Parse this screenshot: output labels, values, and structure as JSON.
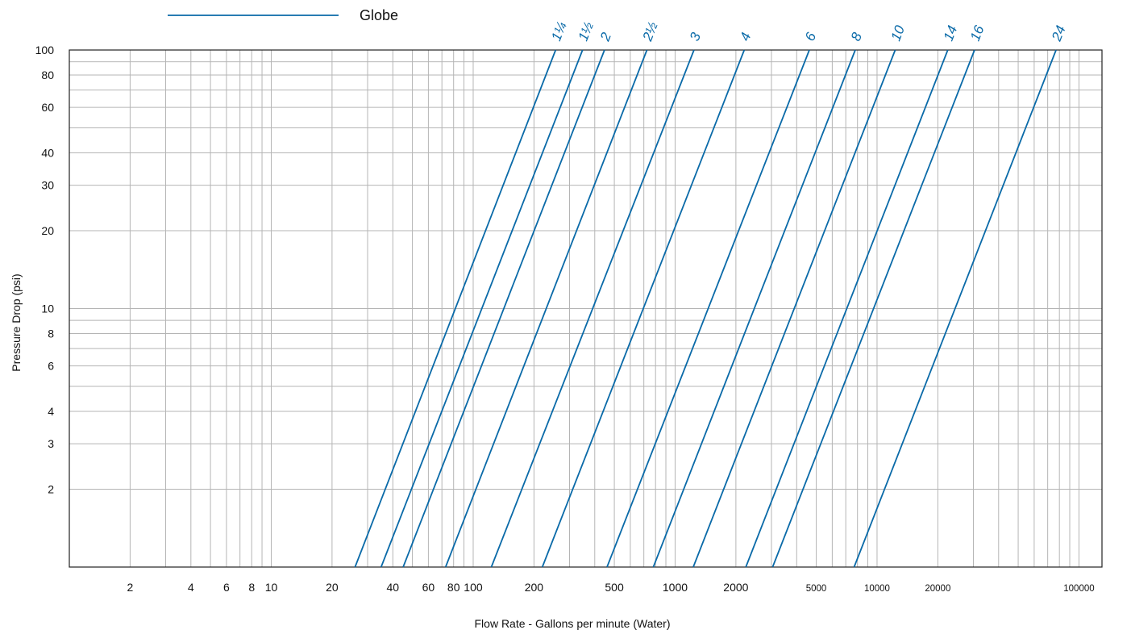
{
  "chart_data": {
    "type": "line",
    "title": "",
    "legend": {
      "label": "Globe",
      "placement": "top-left"
    },
    "xlabel": "Flow Rate - Gallons per minute (Water)",
    "ylabel": "Pressure Drop (psi)",
    "x_scale": "log",
    "y_scale": "log",
    "xlim": [
      1,
      130000
    ],
    "ylim": [
      1,
      100
    ],
    "grid": true,
    "series_color": "#0a6aa8",
    "x_ticks": [
      {
        "value": 2,
        "label": "2"
      },
      {
        "value": 4,
        "label": "4"
      },
      {
        "value": 6,
        "label": "6"
      },
      {
        "value": 8,
        "label": "8"
      },
      {
        "value": 10,
        "label": "10"
      },
      {
        "value": 20,
        "label": "20"
      },
      {
        "value": 40,
        "label": "40"
      },
      {
        "value": 60,
        "label": "60"
      },
      {
        "value": 80,
        "label": "80"
      },
      {
        "value": 100,
        "label": "100"
      },
      {
        "value": 200,
        "label": "200"
      },
      {
        "value": 500,
        "label": "500"
      },
      {
        "value": 1000,
        "label": "1000"
      },
      {
        "value": 2000,
        "label": "2000"
      },
      {
        "value": 5000,
        "label": "5000",
        "small": true
      },
      {
        "value": 10000,
        "label": "10000",
        "small": true
      },
      {
        "value": 20000,
        "label": "20000",
        "small": true
      },
      {
        "value": 100000,
        "label": "100000",
        "small": true
      }
    ],
    "y_ticks": [
      {
        "value": 2,
        "label": "2"
      },
      {
        "value": 3,
        "label": "3"
      },
      {
        "value": 4,
        "label": "4"
      },
      {
        "value": 6,
        "label": "6"
      },
      {
        "value": 8,
        "label": "8"
      },
      {
        "value": 10,
        "label": "10"
      },
      {
        "value": 20,
        "label": "20"
      },
      {
        "value": 30,
        "label": "30"
      },
      {
        "value": 40,
        "label": "40"
      },
      {
        "value": 60,
        "label": "60"
      },
      {
        "value": 80,
        "label": "80"
      },
      {
        "value": 100,
        "label": "100"
      }
    ],
    "x_gridlines": [
      2,
      3,
      4,
      5,
      6,
      7,
      8,
      9,
      10,
      20,
      30,
      40,
      50,
      60,
      70,
      80,
      90,
      100,
      200,
      300,
      400,
      500,
      600,
      700,
      800,
      900,
      1000,
      2000,
      3000,
      4000,
      5000,
      6000,
      7000,
      8000,
      9000,
      10000,
      20000,
      30000,
      40000,
      50000,
      60000,
      70000,
      80000,
      90000,
      100000
    ],
    "y_gridlines": [
      2,
      3,
      4,
      5,
      6,
      7,
      8,
      9,
      10,
      20,
      30,
      40,
      50,
      60,
      70,
      80,
      90,
      100
    ],
    "series": [
      {
        "name": "1¼",
        "points": [
          [
            26,
            1
          ],
          [
            256,
            100
          ]
        ]
      },
      {
        "name": "1½",
        "points": [
          [
            35,
            1
          ],
          [
            348,
            100
          ]
        ]
      },
      {
        "name": "2",
        "points": [
          [
            45,
            1
          ],
          [
            447,
            100
          ]
        ]
      },
      {
        "name": "2½",
        "points": [
          [
            73,
            1
          ],
          [
            725,
            100
          ]
        ]
      },
      {
        "name": "3",
        "points": [
          [
            123,
            1
          ],
          [
            1240,
            100
          ]
        ]
      },
      {
        "name": "4",
        "points": [
          [
            220,
            1
          ],
          [
            2200,
            100
          ]
        ]
      },
      {
        "name": "6",
        "points": [
          [
            460,
            1
          ],
          [
            4620,
            100
          ]
        ]
      },
      {
        "name": "8",
        "points": [
          [
            780,
            1
          ],
          [
            7800,
            100
          ]
        ]
      },
      {
        "name": "10",
        "points": [
          [
            1230,
            1
          ],
          [
            12300,
            100
          ]
        ]
      },
      {
        "name": "14",
        "points": [
          [
            2240,
            1
          ],
          [
            22400,
            100
          ]
        ]
      },
      {
        "name": "16",
        "points": [
          [
            3040,
            1
          ],
          [
            30400,
            100
          ]
        ]
      },
      {
        "name": "24",
        "points": [
          [
            7700,
            1
          ],
          [
            77000,
            100
          ]
        ]
      }
    ]
  }
}
